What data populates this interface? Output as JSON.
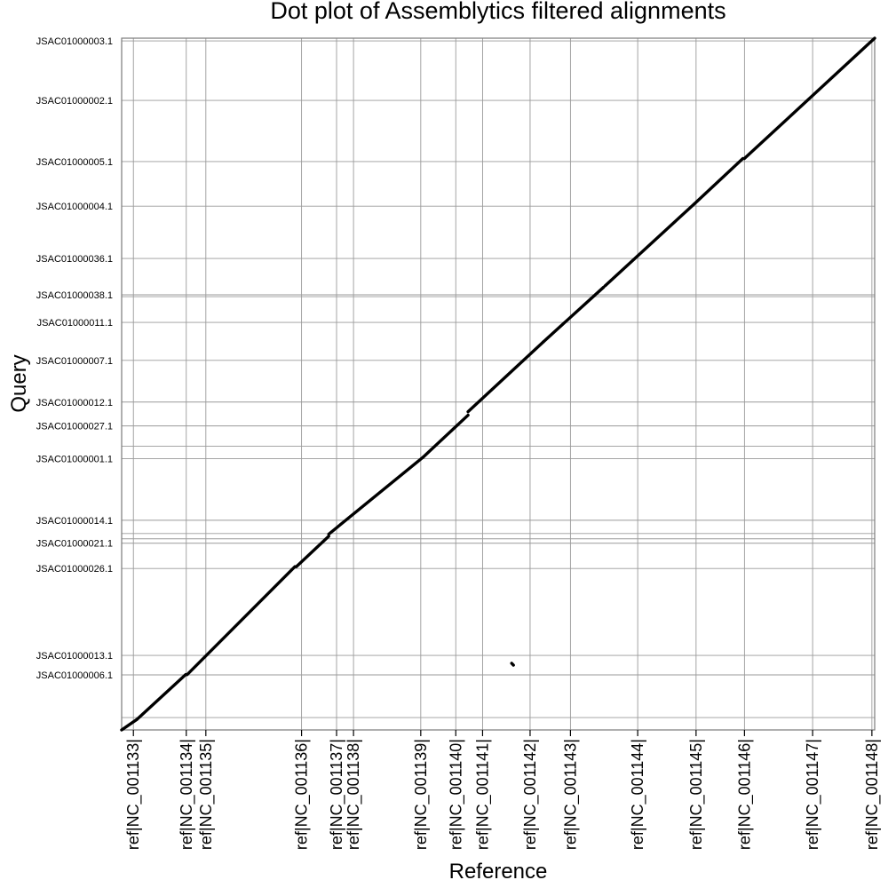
{
  "chart_data": {
    "type": "scatter",
    "title": "Dot plot of Assemblytics filtered alignments",
    "xlabel": "Reference",
    "ylabel": "Query",
    "x_ticks": [
      {
        "label": "ref|NC_001133|",
        "pos": 0.0156
      },
      {
        "label": "ref|NC_001134|",
        "pos": 0.0858
      },
      {
        "label": "ref|NC_001135|",
        "pos": 0.1118
      },
      {
        "label": "ref|NC_001136|",
        "pos": 0.2389
      },
      {
        "label": "ref|NC_001137|",
        "pos": 0.2854
      },
      {
        "label": "ref|NC_001138|",
        "pos": 0.3079
      },
      {
        "label": "ref|NC_001139|",
        "pos": 0.3972
      },
      {
        "label": "ref|NC_001140|",
        "pos": 0.4437
      },
      {
        "label": "ref|NC_001141|",
        "pos": 0.4793
      },
      {
        "label": "ref|NC_001142|",
        "pos": 0.5424
      },
      {
        "label": "ref|NC_001143|",
        "pos": 0.596
      },
      {
        "label": "ref|NC_001144|",
        "pos": 0.6853
      },
      {
        "label": "ref|NC_001145|",
        "pos": 0.7628
      },
      {
        "label": "ref|NC_001146|",
        "pos": 0.8271
      },
      {
        "label": "ref|NC_001147|",
        "pos": 0.9176
      },
      {
        "label": "ref|NC_001148|",
        "pos": 0.9963
      }
    ],
    "x_gridlines": [
      0.0156,
      0.0858,
      0.1118,
      0.2389,
      0.2854,
      0.3079,
      0.3972,
      0.4437,
      0.4793,
      0.5424,
      0.596,
      0.6853,
      0.7628,
      0.8271,
      0.9176,
      0.9963
    ],
    "y_ticks": [
      {
        "label": "JSAC01000003.1",
        "pos": 0.9961
      },
      {
        "label": "JSAC01000002.1",
        "pos": 0.91
      },
      {
        "label": "JSAC01000005.1",
        "pos": 0.8216
      },
      {
        "label": "JSAC01000004.1",
        "pos": 0.7571
      },
      {
        "label": "JSAC01000036.1",
        "pos": 0.6815
      },
      {
        "label": "JSAC01000038.1",
        "pos": 0.629
      },
      {
        "label": "JSAC01000011.1",
        "pos": 0.5892
      },
      {
        "label": "JSAC01000007.1",
        "pos": 0.5342
      },
      {
        "label": "JSAC01000012.1",
        "pos": 0.474
      },
      {
        "label": "JSAC01000027.1",
        "pos": 0.4395
      },
      {
        "label": "JSAC01000001.1",
        "pos": 0.3921
      },
      {
        "label": "JSAC01000014.1",
        "pos": 0.3031
      },
      {
        "label": "JSAC01000021.1",
        "pos": 0.2699
      },
      {
        "label": "JSAC01000026.1",
        "pos": 0.2334
      },
      {
        "label": "JSAC01000013.1",
        "pos": 0.1078
      },
      {
        "label": "JSAC01000006.1",
        "pos": 0.0796
      }
    ],
    "y_gridlines": [
      0.9961,
      0.91,
      0.8216,
      0.7571,
      0.6815,
      0.629,
      0.6264,
      0.5892,
      0.5342,
      0.474,
      0.4395,
      0.41,
      0.3921,
      0.3031,
      0.284,
      0.2763,
      0.2699,
      0.2334,
      0.1078,
      0.0796,
      0.0179
    ],
    "xlim": [
      0,
      1
    ],
    "ylim": [
      0,
      1
    ],
    "grid": true,
    "series": [
      {
        "segments": [
          [
            0.0,
            0.0,
            0.02,
            0.015
          ],
          [
            0.02,
            0.015,
            0.085,
            0.08
          ],
          [
            0.087,
            0.08,
            0.23,
            0.236
          ],
          [
            0.232,
            0.236,
            0.275,
            0.28
          ],
          [
            0.275,
            0.283,
            0.4,
            0.394
          ],
          [
            0.4,
            0.394,
            0.46,
            0.455
          ],
          [
            0.46,
            0.46,
            0.56,
            0.561
          ],
          [
            0.56,
            0.561,
            0.64,
            0.64
          ],
          [
            0.642,
            0.642,
            0.76,
            0.76
          ],
          [
            0.76,
            0.76,
            0.825,
            0.826
          ],
          [
            0.827,
            0.826,
            1.0,
            1.0
          ],
          [
            0.5179,
            0.0963,
            0.5203,
            0.0936
          ]
        ]
      }
    ]
  }
}
